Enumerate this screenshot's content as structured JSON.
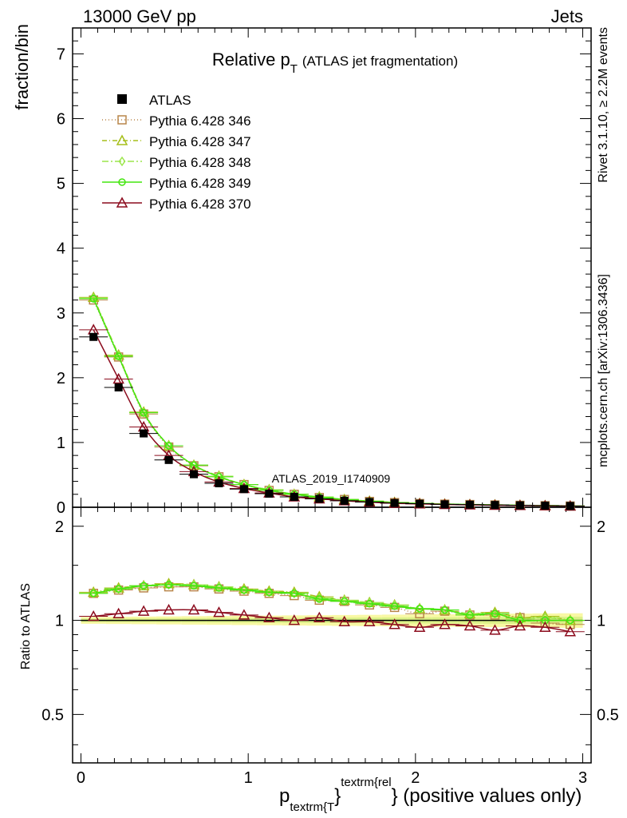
{
  "header": {
    "left": "13000 GeV pp",
    "right": "Jets"
  },
  "side": {
    "rivet": "Rivet 3.1.10, ≥ 2.2M events",
    "mcplots": "mcplots.cern.ch [arXiv:1306.3436]"
  },
  "chart_data": {
    "type": "line",
    "title_main": "Relative p",
    "title_sub": "T",
    "title_rest": "(ATLAS jet fragmentation)",
    "watermark": "ATLAS_2019_I1740909",
    "ylabel": "fraction/bin",
    "ratio_ylabel": "Ratio to ATLAS",
    "xlabel_main": "p",
    "xlabel_sub": "textrm{T",
    "xlabel_sup": "textrm{rel",
    "xlabel_brace": "}",
    "xlabel_rest": "} (positive values only)",
    "xlim": [
      -0.05,
      3.05
    ],
    "ylim": [
      0,
      7.4
    ],
    "ratio_ylim": [
      0.35,
      2.3
    ],
    "x_ticks": [
      "0",
      "1",
      "2",
      "3"
    ],
    "y_ticks": [
      "0",
      "1",
      "2",
      "3",
      "4",
      "5",
      "6",
      "7"
    ],
    "ratio_ticks": [
      "0.5",
      "1",
      "2"
    ],
    "x": [
      0.075,
      0.225,
      0.375,
      0.525,
      0.675,
      0.825,
      0.975,
      1.125,
      1.275,
      1.425,
      1.575,
      1.725,
      1.875,
      2.025,
      2.175,
      2.325,
      2.475,
      2.625,
      2.775,
      2.925
    ],
    "data": {
      "name": "ATLAS",
      "values": [
        2.63,
        1.85,
        1.14,
        0.73,
        0.51,
        0.37,
        0.28,
        0.21,
        0.16,
        0.13,
        0.1,
        0.08,
        0.065,
        0.055,
        0.045,
        0.04,
        0.035,
        0.03,
        0.025,
        0.02
      ]
    },
    "series": [
      {
        "name": "Pythia 6.428 346",
        "color": "#b8864a",
        "marker": "square",
        "values": [
          3.2,
          2.32,
          1.44,
          0.93,
          0.64,
          0.47,
          0.35,
          0.26,
          0.2,
          0.15,
          0.12,
          0.09,
          0.072,
          0.057,
          0.048,
          0.042,
          0.036,
          0.03,
          0.024,
          0.019
        ],
        "ratio": [
          1.22,
          1.25,
          1.27,
          1.28,
          1.28,
          1.26,
          1.24,
          1.22,
          1.2,
          1.16,
          1.15,
          1.12,
          1.1,
          1.05,
          1.07,
          1.04,
          1.04,
          1.02,
          0.98,
          0.97
        ]
      },
      {
        "name": "Pythia 6.428 347",
        "color": "#a6bf1a",
        "marker": "triangle",
        "values": [
          3.24,
          2.35,
          1.47,
          0.95,
          0.65,
          0.48,
          0.35,
          0.27,
          0.2,
          0.16,
          0.12,
          0.095,
          0.075,
          0.06,
          0.05,
          0.043,
          0.037,
          0.031,
          0.026,
          0.021
        ],
        "ratio": [
          1.23,
          1.27,
          1.29,
          1.31,
          1.3,
          1.28,
          1.26,
          1.24,
          1.23,
          1.19,
          1.16,
          1.14,
          1.12,
          1.09,
          1.08,
          1.05,
          1.06,
          1.02,
          1.03,
          1.0
        ]
      },
      {
        "name": "Pythia 6.428 348",
        "color": "#9ce64c",
        "marker": "diamond",
        "values": [
          3.23,
          2.34,
          1.46,
          0.95,
          0.65,
          0.48,
          0.35,
          0.27,
          0.2,
          0.16,
          0.12,
          0.095,
          0.074,
          0.06,
          0.05,
          0.043,
          0.037,
          0.031,
          0.026,
          0.021
        ],
        "ratio": [
          1.22,
          1.26,
          1.29,
          1.3,
          1.3,
          1.28,
          1.25,
          1.23,
          1.22,
          1.18,
          1.16,
          1.14,
          1.12,
          1.09,
          1.08,
          1.05,
          1.05,
          1.01,
          1.02,
          1.0
        ]
      },
      {
        "name": "Pythia 6.428 349",
        "color": "#44e60f",
        "marker": "circle",
        "values": [
          3.22,
          2.33,
          1.46,
          0.95,
          0.65,
          0.47,
          0.35,
          0.26,
          0.2,
          0.155,
          0.12,
          0.094,
          0.073,
          0.059,
          0.049,
          0.042,
          0.036,
          0.03,
          0.025,
          0.02
        ],
        "ratio": [
          1.22,
          1.26,
          1.29,
          1.3,
          1.29,
          1.27,
          1.25,
          1.23,
          1.22,
          1.17,
          1.15,
          1.13,
          1.11,
          1.09,
          1.08,
          1.04,
          1.05,
          1.0,
          1.0,
          1.0
        ]
      },
      {
        "name": "Pythia 6.428 370",
        "color": "#8c0c1e",
        "marker": "triangle",
        "values": [
          2.74,
          1.98,
          1.24,
          0.8,
          0.55,
          0.39,
          0.29,
          0.22,
          0.16,
          0.13,
          0.1,
          0.08,
          0.062,
          0.052,
          0.043,
          0.037,
          0.031,
          0.027,
          0.023,
          0.018
        ],
        "ratio": [
          1.03,
          1.05,
          1.07,
          1.08,
          1.08,
          1.06,
          1.04,
          1.02,
          1.0,
          1.02,
          0.99,
          0.99,
          0.97,
          0.95,
          0.97,
          0.96,
          0.93,
          0.96,
          0.95,
          0.92
        ]
      }
    ]
  }
}
